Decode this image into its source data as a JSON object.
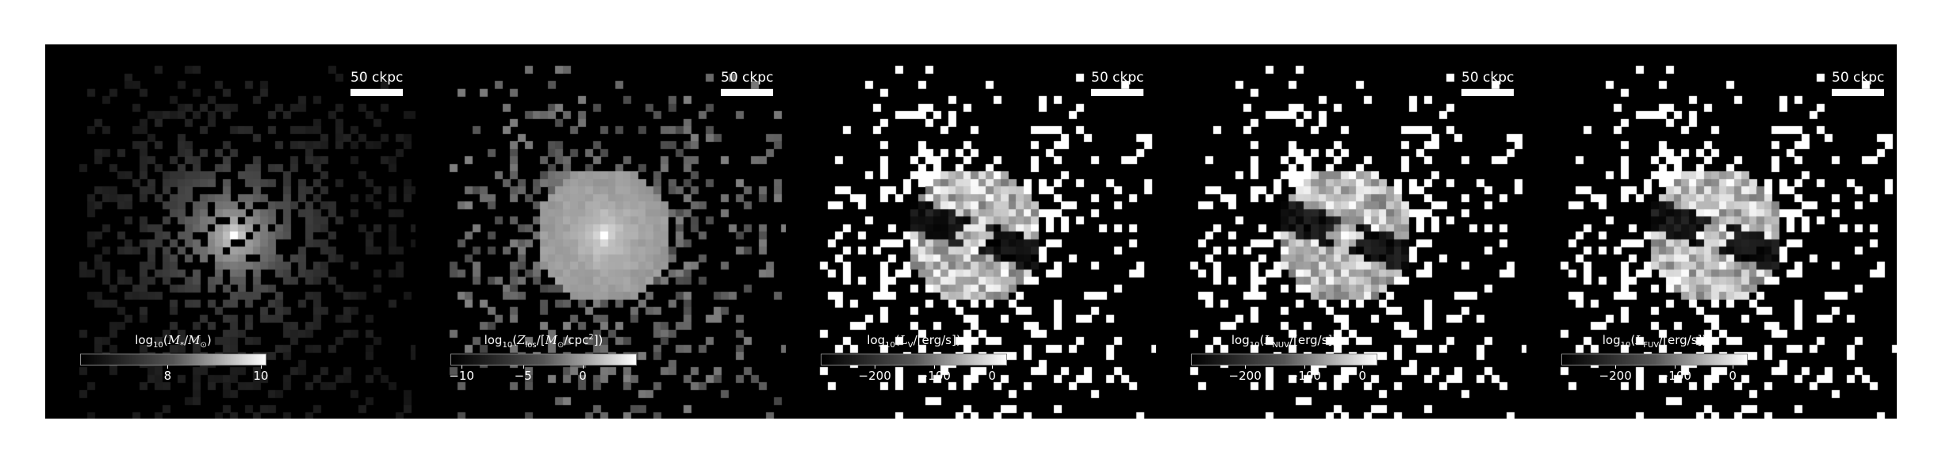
{
  "scale_bar_label": "50 ckpc",
  "panels": [
    {
      "id": "stellar-mass",
      "colorbar_label_html": "log<sub>10</sub>(<i>M</i><sub>*</sub>/<i>M</i><sub>⊙</sub>)",
      "ticks": [
        {
          "label": "8",
          "pos": 0.47
        },
        {
          "label": "10",
          "pos": 0.97
        }
      ],
      "style": "smooth-faint"
    },
    {
      "id": "metallicity",
      "colorbar_label_html": "log<sub>10</sub>(<i>Z</i><sub>los</sub>/[<i>M</i><sub>⊙</sub>/cpc<sup>2</sup>])",
      "ticks": [
        {
          "label": "−10",
          "pos": 0.06
        },
        {
          "label": "−5",
          "pos": 0.39
        },
        {
          "label": "0",
          "pos": 0.71
        }
      ],
      "style": "grey-pixels"
    },
    {
      "id": "v-band",
      "colorbar_label_html": "log<sub>10</sub>(<i>L</i><sub>V</sub>/[erg/s])",
      "ticks": [
        {
          "label": "−200",
          "pos": 0.29
        },
        {
          "label": "−100",
          "pos": 0.61
        },
        {
          "label": "0",
          "pos": 0.92
        }
      ],
      "style": "white-pixels"
    },
    {
      "id": "nuv",
      "colorbar_label_html": "log<sub>10</sub>(<i>L</i><sub>NUV</sub>/[erg/s])",
      "ticks": [
        {
          "label": "−200",
          "pos": 0.29
        },
        {
          "label": "−100",
          "pos": 0.61
        },
        {
          "label": "0",
          "pos": 0.92
        }
      ],
      "style": "white-pixels"
    },
    {
      "id": "fuv",
      "colorbar_label_html": "log<sub>10</sub>(<i>L</i><sub>FUV</sub>/[erg/s])",
      "ticks": [
        {
          "label": "−200",
          "pos": 0.29
        },
        {
          "label": "−100",
          "pos": 0.61
        },
        {
          "label": "0",
          "pos": 0.92
        }
      ],
      "style": "white-pixels"
    }
  ]
}
